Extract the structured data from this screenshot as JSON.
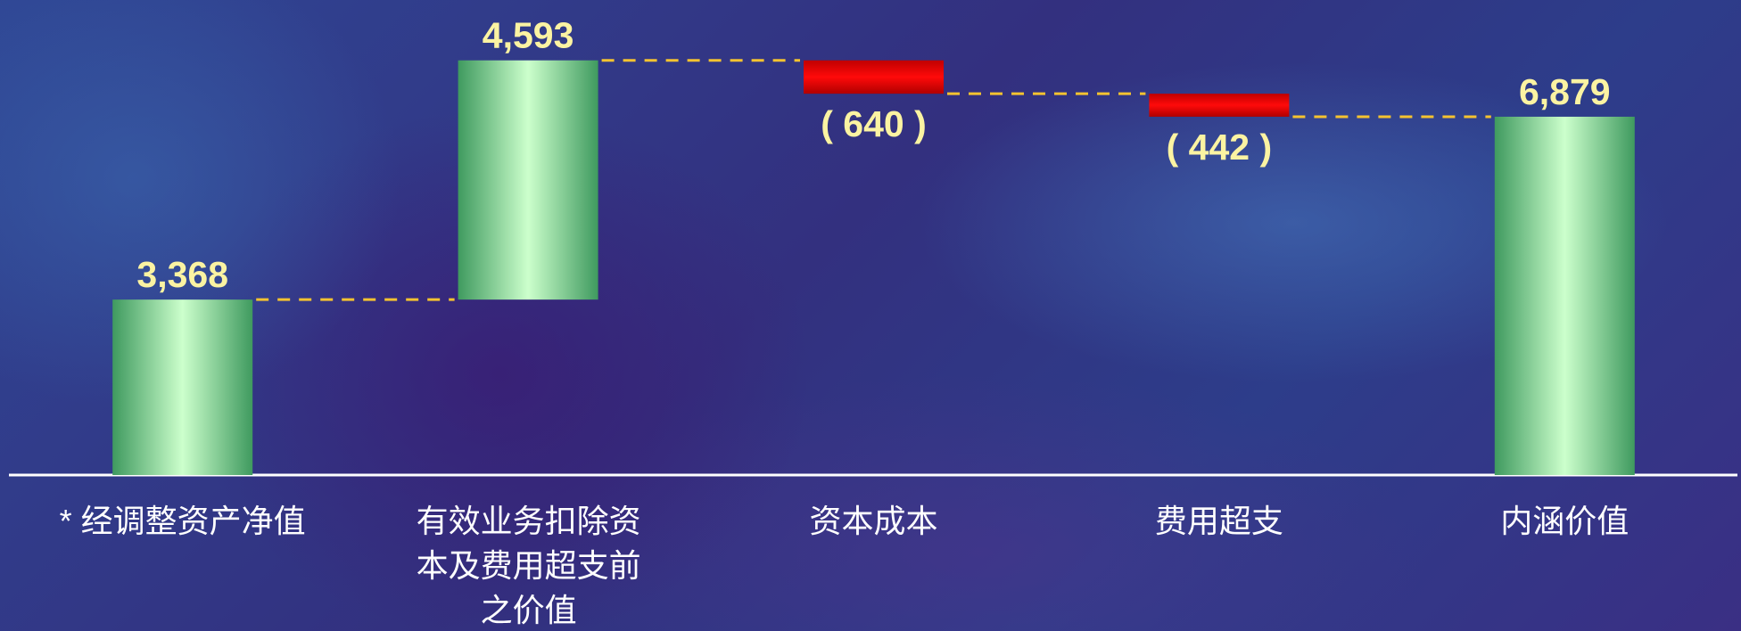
{
  "chart_data": {
    "type": "waterfall",
    "categories": [
      "* 经调整资产净值",
      "有效业务扣除资本及费用超支前之价值",
      "资本成本",
      "费用超支",
      "内涵价值"
    ],
    "values": [
      3368,
      4593,
      -640,
      -442,
      6879
    ],
    "value_labels": [
      "3,368",
      "4,593",
      "( 640 )",
      "( 442 )",
      "6,879"
    ],
    "measures": [
      "absolute",
      "relative",
      "relative",
      "relative",
      "total"
    ],
    "increase_color": "#5fb87a",
    "decrease_color": "#e00000",
    "connector_color": "#f5c330",
    "ylim": [
      0,
      9000
    ]
  }
}
